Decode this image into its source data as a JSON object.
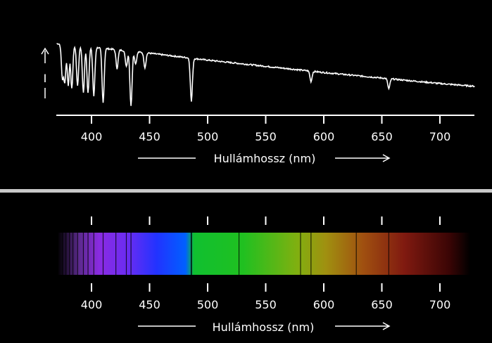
{
  "chart_data": [
    {
      "type": "line",
      "title": "",
      "xlabel": "Hullámhossz (nm)",
      "ylabel": "I",
      "xlim": [
        370,
        730
      ],
      "ticks": [
        400,
        450,
        500,
        550,
        600,
        650,
        700
      ],
      "tick_labels": [
        "400",
        "450",
        "500",
        "550",
        "600",
        "650",
        "700"
      ],
      "continuum": {
        "x": [
          370,
          400,
          450,
          500,
          550,
          600,
          650,
          700,
          730
        ],
        "y": [
          1.0,
          0.95,
          0.86,
          0.76,
          0.67,
          0.58,
          0.5,
          0.42,
          0.38
        ]
      },
      "absorption_lines": [
        {
          "x": 375,
          "depth": 0.5
        },
        {
          "x": 377,
          "depth": 0.55
        },
        {
          "x": 380,
          "depth": 0.6
        },
        {
          "x": 383,
          "depth": 0.65
        },
        {
          "x": 388,
          "depth": 0.6
        },
        {
          "x": 393,
          "depth": 0.7
        },
        {
          "x": 397,
          "depth": 0.7
        },
        {
          "x": 402,
          "depth": 0.75
        },
        {
          "x": 410,
          "depth": 0.85
        },
        {
          "x": 422,
          "depth": 0.3
        },
        {
          "x": 430,
          "depth": 0.25
        },
        {
          "x": 434,
          "depth": 0.9
        },
        {
          "x": 438,
          "depth": 0.2
        },
        {
          "x": 446,
          "depth": 0.25
        },
        {
          "x": 486,
          "depth": 0.8
        },
        {
          "x": 589,
          "depth": 0.25
        },
        {
          "x": 656,
          "depth": 0.3
        }
      ]
    },
    {
      "type": "spectrum",
      "xlabel": "Hullámhossz (nm)",
      "xlim": [
        370,
        730
      ],
      "ticks": [
        400,
        450,
        500,
        550,
        600,
        650,
        700
      ],
      "tick_labels": [
        "400",
        "450",
        "500",
        "550",
        "600",
        "650",
        "700"
      ],
      "dark_lines": [
        375,
        378,
        381,
        384,
        388,
        393,
        397,
        402,
        410,
        421,
        430,
        434,
        486,
        527,
        580,
        589,
        628,
        656
      ]
    }
  ]
}
